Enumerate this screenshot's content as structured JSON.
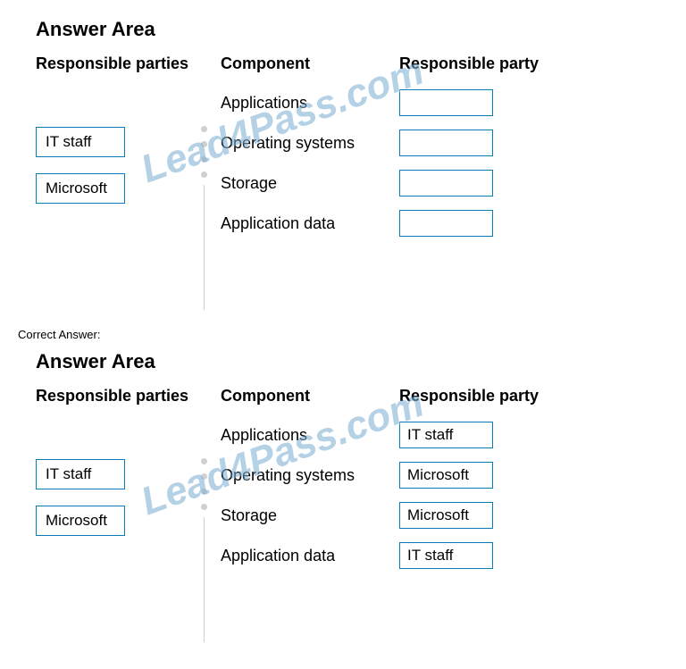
{
  "section1": {
    "title": "Answer Area",
    "left": {
      "heading": "Responsible parties",
      "items": [
        "IT staff",
        "Microsoft"
      ]
    },
    "right": {
      "col1": "Component",
      "col2": "Responsible party",
      "rows": [
        {
          "component": "Applications",
          "value": ""
        },
        {
          "component": "Operating systems",
          "value": ""
        },
        {
          "component": "Storage",
          "value": ""
        },
        {
          "component": "Application data",
          "value": ""
        }
      ]
    },
    "watermark": "Lead4Pass.com"
  },
  "correctLabel": "Correct Answer:",
  "section2": {
    "title": "Answer Area",
    "left": {
      "heading": "Responsible parties",
      "items": [
        "IT staff",
        "Microsoft"
      ]
    },
    "right": {
      "col1": "Component",
      "col2": "Responsible party",
      "rows": [
        {
          "component": "Applications",
          "value": "IT staff"
        },
        {
          "component": "Operating systems",
          "value": "Microsoft"
        },
        {
          "component": "Storage",
          "value": "Microsoft"
        },
        {
          "component": "Application data",
          "value": "IT staff"
        }
      ]
    },
    "watermark": "Lead4Pass.com"
  },
  "colors": {
    "border": "#0a7db8",
    "dot": "#d0d0d0",
    "watermark": "rgba(70,140,190,0.4)",
    "background": "#ffffff",
    "text": "#000000"
  }
}
